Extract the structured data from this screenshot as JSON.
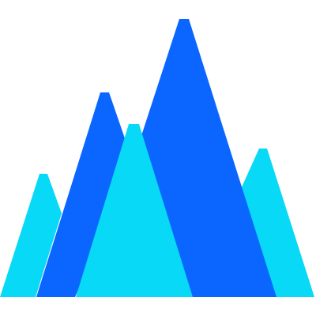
{
  "image": {
    "icon_name": "mountains-icon",
    "background_color": "#FFFFFF",
    "colors": {
      "dark_blue": "#0A66FF",
      "light_cyan": "#08D9F6"
    }
  }
}
